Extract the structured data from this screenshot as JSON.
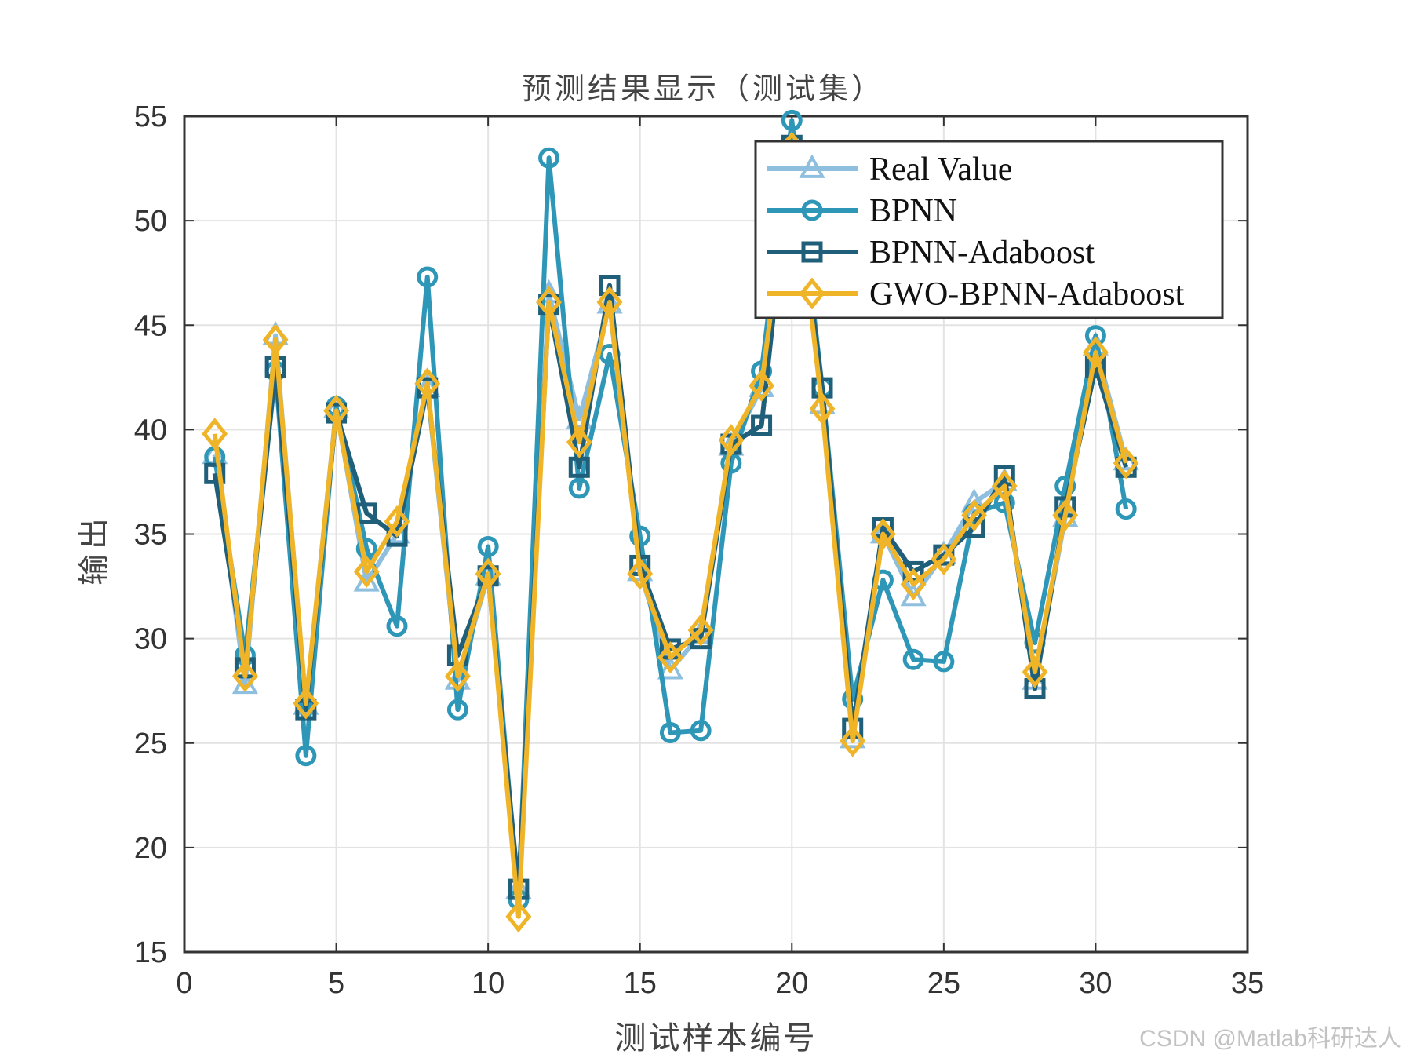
{
  "chart_data": {
    "type": "line",
    "title": "预测结果显示（测试集）",
    "xlabel": "测试样本编号",
    "ylabel": "输出",
    "xlim": [
      0,
      35
    ],
    "ylim": [
      15,
      55
    ],
    "xticks": [
      0,
      5,
      10,
      15,
      20,
      25,
      30,
      35
    ],
    "yticks": [
      15,
      20,
      25,
      30,
      35,
      40,
      45,
      50,
      55
    ],
    "grid": true,
    "legend_position": "upper right",
    "x": [
      1,
      2,
      3,
      4,
      5,
      6,
      7,
      8,
      9,
      10,
      11,
      12,
      13,
      14,
      15,
      16,
      17,
      18,
      19,
      20,
      21,
      22,
      23,
      24,
      25,
      26,
      27,
      28,
      29,
      30,
      31
    ],
    "series": [
      {
        "name": "Real Value",
        "marker": "triangle",
        "color": "#8fbfdf",
        "values": [
          38.8,
          27.8,
          44.5,
          26.8,
          41.0,
          32.7,
          35.0,
          42.0,
          28.0,
          33.0,
          18.0,
          46.5,
          40.5,
          46.0,
          33.2,
          28.5,
          30.2,
          39.2,
          42.0,
          53.5,
          41.2,
          25.2,
          35.0,
          32.0,
          34.0,
          36.5,
          37.5,
          28.0,
          35.8,
          44.0,
          38.5
        ]
      },
      {
        "name": "BPNN",
        "marker": "circle",
        "color": "#2e97b8",
        "values": [
          38.7,
          29.2,
          42.8,
          24.4,
          41.1,
          34.3,
          30.6,
          47.3,
          26.6,
          34.4,
          17.5,
          53.0,
          37.2,
          43.6,
          34.9,
          25.5,
          25.6,
          38.4,
          42.8,
          54.8,
          42.0,
          27.1,
          32.8,
          29.0,
          28.9,
          36.0,
          36.5,
          29.8,
          37.3,
          44.5,
          36.2
        ]
      },
      {
        "name": "BPNN-Adaboost",
        "marker": "square",
        "color": "#1f5f7a",
        "values": [
          37.9,
          28.6,
          43.0,
          26.6,
          40.8,
          36.0,
          34.9,
          42.0,
          29.2,
          33.0,
          18.0,
          46.0,
          38.2,
          46.9,
          33.5,
          29.5,
          30.0,
          39.3,
          40.2,
          53.6,
          42.0,
          25.7,
          35.3,
          33.2,
          34.0,
          35.3,
          37.8,
          27.6,
          36.3,
          43.0,
          38.2
        ]
      },
      {
        "name": "GWO-BPNN-Adaboost",
        "marker": "diamond",
        "color": "#f0b429",
        "values": [
          39.8,
          28.2,
          44.3,
          26.9,
          40.9,
          33.2,
          35.6,
          42.2,
          28.2,
          33.1,
          16.7,
          46.1,
          39.4,
          46.1,
          33.1,
          29.1,
          30.4,
          39.5,
          42.1,
          53.5,
          41.0,
          25.1,
          35.0,
          32.6,
          33.8,
          35.9,
          37.3,
          28.4,
          35.9,
          43.7,
          38.4
        ]
      }
    ]
  },
  "watermark": "CSDN @Matlab科研达人"
}
